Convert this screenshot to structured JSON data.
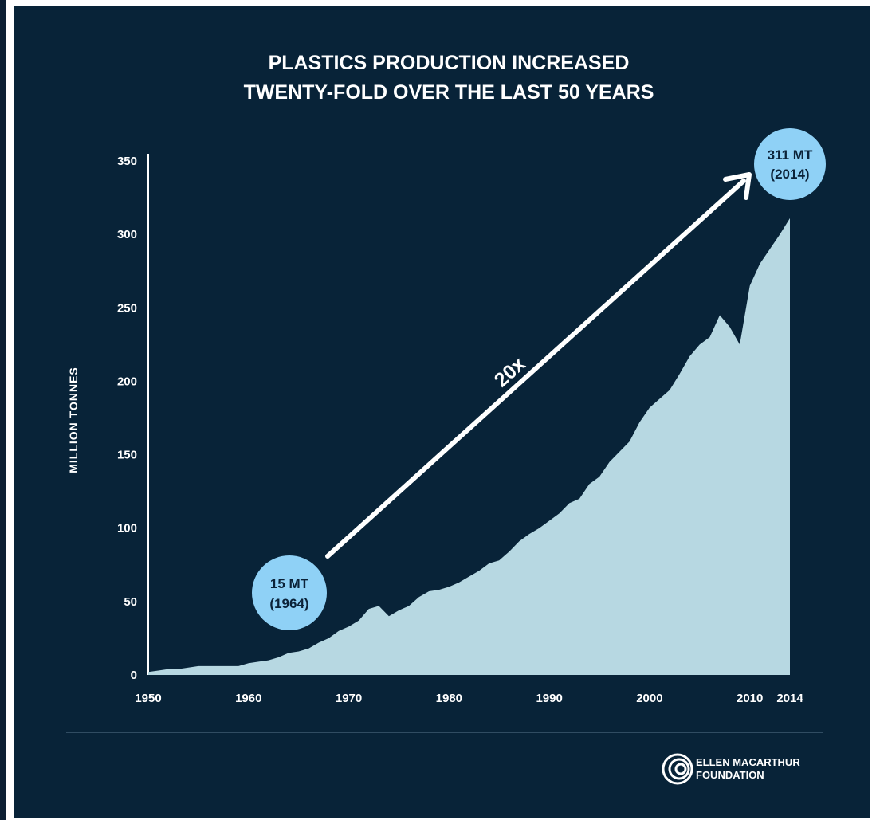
{
  "chart_data": {
    "type": "area",
    "title_lines": [
      "PLASTICS PRODUCTION INCREASED",
      "TWENTY-FOLD OVER THE LAST 50 YEARS"
    ],
    "ylabel": "MILLION TONNES",
    "xlabel": "",
    "ylim": [
      0,
      350
    ],
    "xlim": [
      1950,
      2014
    ],
    "y_ticks": [
      "0",
      "50",
      "100",
      "150",
      "200",
      "250",
      "300",
      "350"
    ],
    "x_ticks": [
      "1950",
      "1960",
      "1970",
      "1980",
      "1990",
      "2000",
      "2010",
      "2014"
    ],
    "grid": false,
    "x": [
      1950,
      1951,
      1952,
      1953,
      1954,
      1955,
      1956,
      1957,
      1958,
      1959,
      1960,
      1961,
      1962,
      1963,
      1964,
      1965,
      1966,
      1967,
      1968,
      1969,
      1970,
      1971,
      1972,
      1973,
      1974,
      1975,
      1976,
      1977,
      1978,
      1979,
      1980,
      1981,
      1982,
      1983,
      1984,
      1985,
      1986,
      1987,
      1988,
      1989,
      1990,
      1991,
      1992,
      1993,
      1994,
      1995,
      1996,
      1997,
      1998,
      1999,
      2000,
      2001,
      2002,
      2003,
      2004,
      2005,
      2006,
      2007,
      2008,
      2009,
      2010,
      2011,
      2012,
      2013,
      2014
    ],
    "values": [
      2,
      3,
      4,
      4,
      5,
      6,
      6,
      6,
      6,
      6,
      8,
      9,
      10,
      12,
      15,
      16,
      18,
      22,
      25,
      30,
      33,
      37,
      45,
      47,
      40,
      44,
      47,
      53,
      57,
      58,
      60,
      63,
      67,
      71,
      76,
      78,
      84,
      91,
      96,
      100,
      105,
      110,
      117,
      120,
      130,
      135,
      145,
      152,
      159,
      172,
      182,
      188,
      194,
      205,
      217,
      225,
      230,
      245,
      237,
      225,
      265,
      280,
      290,
      300,
      311
    ],
    "annotations": [
      {
        "label_line1": "15 MT",
        "label_line2": "(1964)",
        "x": 1964,
        "y": 15
      },
      {
        "label_line1": "311 MT",
        "label_line2": "(2014)",
        "x": 2014,
        "y": 311
      }
    ],
    "arrow_label": "20x",
    "colors": {
      "background": "#082338",
      "area": "#b7d8e2",
      "bubble": "#8fd1f6",
      "text": "#ffffff",
      "bubble_text": "#0b2238"
    }
  },
  "footer": {
    "logo_line1": "ELLEN MACARTHUR",
    "logo_line2": "FOUNDATION",
    "logo_icon": "concentric-rings-logo"
  }
}
